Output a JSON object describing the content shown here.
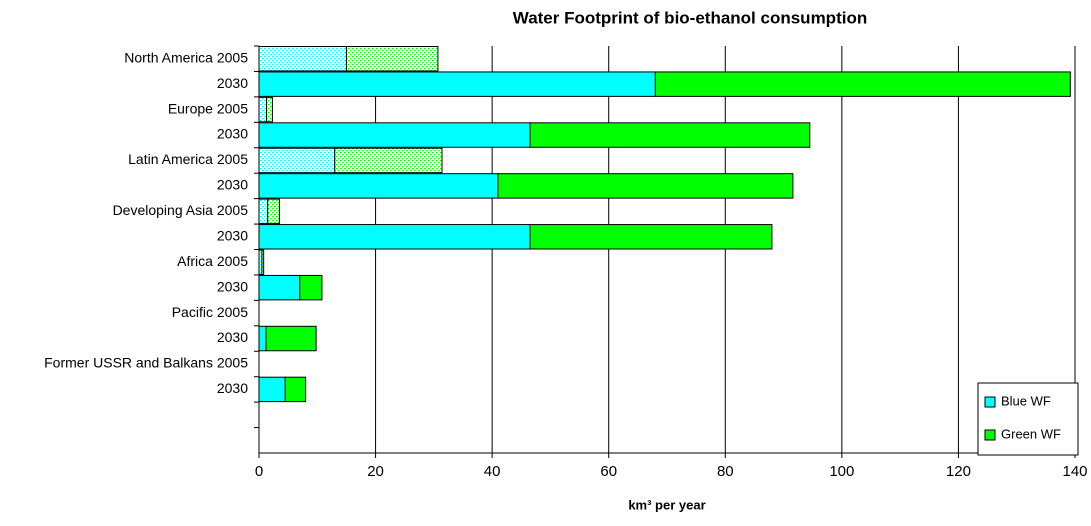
{
  "chart_data": {
    "type": "stacked_bar_horizontal",
    "title": "Water Footprint of bio-ethanol consumption",
    "x_label": "km³ per year",
    "categories": [
      "North America 2005",
      "2030",
      "Europe 2005",
      "2030",
      "Latin America 2005",
      "2030",
      "Developing Asia 2005",
      "2030",
      "Africa 2005",
      "2030",
      "Pacific 2005",
      "2030",
      "Former USSR and Balkans 2005",
      "2030",
      null,
      null
    ],
    "series": [
      {
        "name": "Blue WF",
        "color": "#00ffff",
        "values": [
          15,
          68,
          1.3,
          46.5,
          13,
          41,
          1.5,
          46.5,
          0.5,
          7,
          null,
          1.2,
          null,
          4.5,
          null,
          null
        ]
      },
      {
        "name": "Green WF",
        "color": "#00ff00",
        "values": [
          15.7,
          71.2,
          1,
          48,
          18.4,
          50.6,
          2,
          41.5,
          0.3,
          3.8,
          null,
          8.6,
          null,
          3.5,
          null,
          null
        ]
      }
    ],
    "xlim": [
      0,
      140
    ],
    "xticks": [
      0,
      20,
      40,
      60,
      80,
      100,
      120,
      140
    ],
    "grid": true,
    "legend": "lower right"
  }
}
